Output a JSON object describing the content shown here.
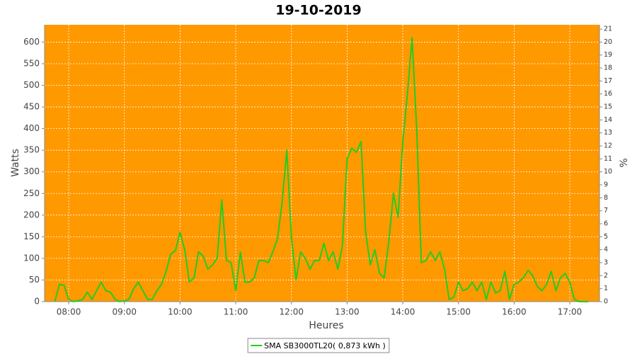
{
  "chart_data": {
    "type": "line",
    "title": "19-10-2019",
    "xlabel": "Heures",
    "ylabel": "Watts",
    "y2label": "%",
    "x": [
      "07:45",
      "07:50",
      "07:55",
      "08:00",
      "08:05",
      "08:10",
      "08:15",
      "08:20",
      "08:25",
      "08:30",
      "08:35",
      "08:40",
      "08:45",
      "08:50",
      "08:55",
      "09:00",
      "09:05",
      "09:10",
      "09:15",
      "09:20",
      "09:25",
      "09:30",
      "09:35",
      "09:40",
      "09:45",
      "09:50",
      "09:55",
      "10:00",
      "10:05",
      "10:10",
      "10:15",
      "10:20",
      "10:25",
      "10:30",
      "10:35",
      "10:40",
      "10:45",
      "10:50",
      "10:55",
      "11:00",
      "11:05",
      "11:10",
      "11:15",
      "11:20",
      "11:25",
      "11:30",
      "11:35",
      "11:40",
      "11:45",
      "11:50",
      "11:55",
      "12:00",
      "12:05",
      "12:10",
      "12:15",
      "12:20",
      "12:25",
      "12:30",
      "12:35",
      "12:40",
      "12:45",
      "12:50",
      "12:55",
      "13:00",
      "13:05",
      "13:10",
      "13:15",
      "13:20",
      "13:25",
      "13:30",
      "13:35",
      "13:40",
      "13:45",
      "13:50",
      "13:55",
      "14:00",
      "14:05",
      "14:10",
      "14:15",
      "14:20",
      "14:25",
      "14:30",
      "14:35",
      "14:40",
      "14:45",
      "14:50",
      "14:55",
      "15:00",
      "15:05",
      "15:10",
      "15:15",
      "15:20",
      "15:25",
      "15:30",
      "15:35",
      "15:40",
      "15:45",
      "15:50",
      "15:55",
      "16:00",
      "16:05",
      "16:10",
      "16:15",
      "16:20",
      "16:25",
      "16:30",
      "16:35",
      "16:40",
      "16:45",
      "16:50",
      "16:55",
      "17:00",
      "17:05",
      "17:10",
      "17:15",
      "17:20"
    ],
    "series": [
      {
        "name": "SMA SB3000TL20( 0,873 kWh )",
        "color": "#22cc22",
        "values": [
          0,
          40,
          38,
          5,
          0,
          2,
          5,
          22,
          5,
          25,
          45,
          25,
          22,
          5,
          0,
          2,
          5,
          30,
          45,
          25,
          5,
          5,
          25,
          40,
          70,
          110,
          118,
          160,
          120,
          45,
          55,
          115,
          105,
          75,
          85,
          100,
          235,
          95,
          90,
          25,
          115,
          45,
          45,
          55,
          95,
          95,
          90,
          115,
          145,
          230,
          350,
          150,
          50,
          115,
          100,
          75,
          95,
          95,
          135,
          95,
          115,
          75,
          130,
          330,
          355,
          345,
          370,
          160,
          85,
          120,
          65,
          55,
          140,
          250,
          195,
          370,
          480,
          610,
          400,
          90,
          95,
          115,
          95,
          115,
          75,
          5,
          10,
          45,
          25,
          30,
          45,
          25,
          45,
          5,
          45,
          20,
          25,
          70,
          5,
          40,
          45,
          55,
          72,
          60,
          35,
          25,
          40,
          70,
          25,
          55,
          65,
          45,
          5,
          0,
          0,
          0
        ]
      }
    ],
    "xlim": [
      "07:34",
      "17:32"
    ],
    "xticks": [
      "08:00",
      "09:00",
      "10:00",
      "11:00",
      "12:00",
      "13:00",
      "14:00",
      "15:00",
      "16:00",
      "17:00"
    ],
    "ylim": [
      0,
      640
    ],
    "yticks": [
      0,
      50,
      100,
      150,
      200,
      250,
      300,
      350,
      400,
      450,
      500,
      550,
      600
    ],
    "y2lim": [
      0,
      21.33
    ],
    "y2ticks": [
      0,
      1,
      2,
      3,
      4,
      5,
      6,
      7,
      8,
      9,
      10,
      11,
      12,
      13,
      14,
      15,
      16,
      17,
      18,
      19,
      20,
      21
    ],
    "grid": true,
    "background": "#ff9900",
    "legend": "bottom"
  }
}
